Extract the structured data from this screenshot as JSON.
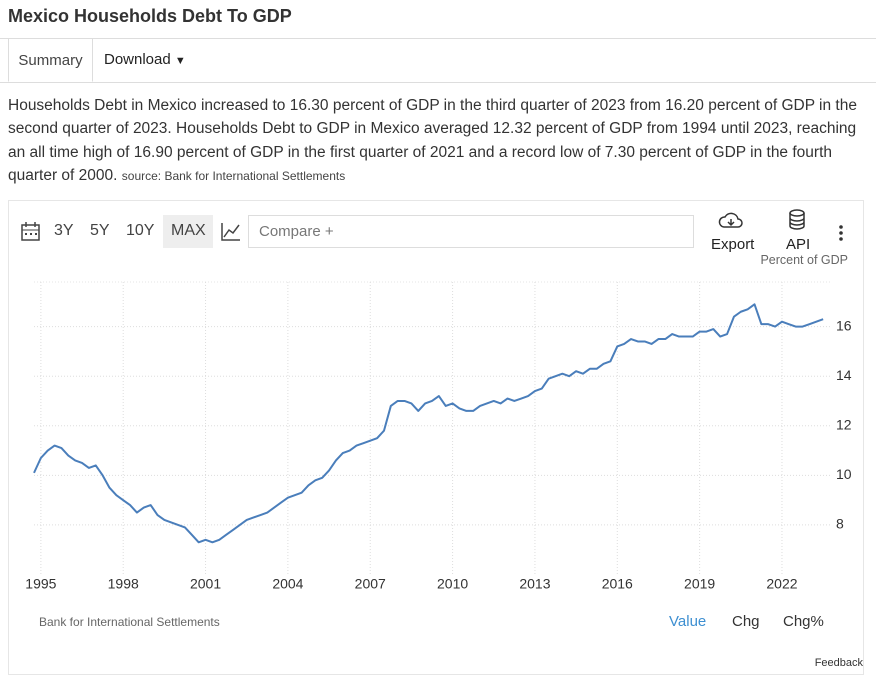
{
  "header": {
    "title": "Mexico Households Debt To GDP"
  },
  "tabs": [
    "Summary",
    "Download"
  ],
  "description": "Households Debt in Mexico increased to 16.30 percent of GDP in the third quarter of 2023 from 16.20 percent of GDP in the second quarter of 2023. Households Debt to GDP in Mexico averaged 12.32 percent of GDP from 1994 until 2023, reaching an all time high of 16.90 percent of GDP in the first quarter of 2021 and a record low of 7.30 percent of GDP in the fourth quarter of 2000.",
  "source": "source: Bank for International Settlements",
  "toolbar": {
    "ranges": [
      "3Y",
      "5Y",
      "10Y",
      "MAX"
    ],
    "compare": "Compare +",
    "export": "Export",
    "api": "API"
  },
  "chart_data": {
    "type": "line",
    "y_label": "Percent of GDP",
    "color": "#4a7ebb",
    "grid": true,
    "x": [
      1994.75,
      1995,
      1995.25,
      1995.5,
      1995.75,
      1996,
      1996.25,
      1996.5,
      1996.75,
      1997,
      1997.25,
      1997.5,
      1997.75,
      1998,
      1998.25,
      1998.5,
      1998.75,
      1999,
      1999.25,
      1999.5,
      1999.75,
      2000,
      2000.25,
      2000.5,
      2000.75,
      2001,
      2001.25,
      2001.5,
      2001.75,
      2002,
      2002.25,
      2002.5,
      2002.75,
      2003,
      2003.25,
      2003.5,
      2003.75,
      2004,
      2004.25,
      2004.5,
      2004.75,
      2005,
      2005.25,
      2005.5,
      2005.75,
      2006,
      2006.25,
      2006.5,
      2006.75,
      2007,
      2007.25,
      2007.5,
      2007.75,
      2008,
      2008.25,
      2008.5,
      2008.75,
      2009,
      2009.25,
      2009.5,
      2009.75,
      2010,
      2010.25,
      2010.5,
      2010.75,
      2011,
      2011.25,
      2011.5,
      2011.75,
      2012,
      2012.25,
      2012.5,
      2012.75,
      2013,
      2013.25,
      2013.5,
      2013.75,
      2014,
      2014.25,
      2014.5,
      2014.75,
      2015,
      2015.25,
      2015.5,
      2015.75,
      2016,
      2016.25,
      2016.5,
      2016.75,
      2017,
      2017.25,
      2017.5,
      2017.75,
      2018,
      2018.25,
      2018.5,
      2018.75,
      2019,
      2019.25,
      2019.5,
      2019.75,
      2020,
      2020.25,
      2020.5,
      2020.75,
      2021,
      2021.25,
      2021.5,
      2021.75,
      2022,
      2022.25,
      2022.5,
      2022.75,
      2023,
      2023.25,
      2023.5
    ],
    "values": [
      10.1,
      10.7,
      11.0,
      11.2,
      11.1,
      10.8,
      10.6,
      10.5,
      10.3,
      10.4,
      10.0,
      9.5,
      9.2,
      9.0,
      8.8,
      8.5,
      8.7,
      8.8,
      8.4,
      8.2,
      8.1,
      8.0,
      7.9,
      7.6,
      7.3,
      7.4,
      7.3,
      7.4,
      7.6,
      7.8,
      8.0,
      8.2,
      8.3,
      8.4,
      8.5,
      8.7,
      8.9,
      9.1,
      9.2,
      9.3,
      9.6,
      9.8,
      9.9,
      10.2,
      10.6,
      10.9,
      11.0,
      11.2,
      11.3,
      11.4,
      11.5,
      11.8,
      12.8,
      13.0,
      13.0,
      12.9,
      12.6,
      12.9,
      13.0,
      13.2,
      12.8,
      12.9,
      12.7,
      12.6,
      12.6,
      12.8,
      12.9,
      13.0,
      12.9,
      13.1,
      13.0,
      13.1,
      13.2,
      13.4,
      13.5,
      13.9,
      14.0,
      14.1,
      14.0,
      14.2,
      14.1,
      14.3,
      14.3,
      14.5,
      14.6,
      15.2,
      15.3,
      15.5,
      15.4,
      15.4,
      15.3,
      15.5,
      15.5,
      15.7,
      15.6,
      15.6,
      15.6,
      15.8,
      15.8,
      15.9,
      15.6,
      15.7,
      16.4,
      16.6,
      16.7,
      16.9,
      16.1,
      16.1,
      16.0,
      16.2,
      16.1,
      16.0,
      16.0,
      16.1,
      16.2,
      16.3
    ],
    "xlim": [
      1994.75,
      2023.75
    ],
    "xticks": [
      1995,
      1998,
      2001,
      2004,
      2007,
      2010,
      2013,
      2016,
      2019,
      2022
    ],
    "ylim": [
      5.98,
      17.8
    ],
    "yticks": [
      8,
      10,
      12,
      14,
      16
    ]
  },
  "footer": {
    "source": "Bank for International Settlements",
    "views": [
      "Value",
      "Chg",
      "Chg%"
    ],
    "feedback": "Feedback"
  }
}
